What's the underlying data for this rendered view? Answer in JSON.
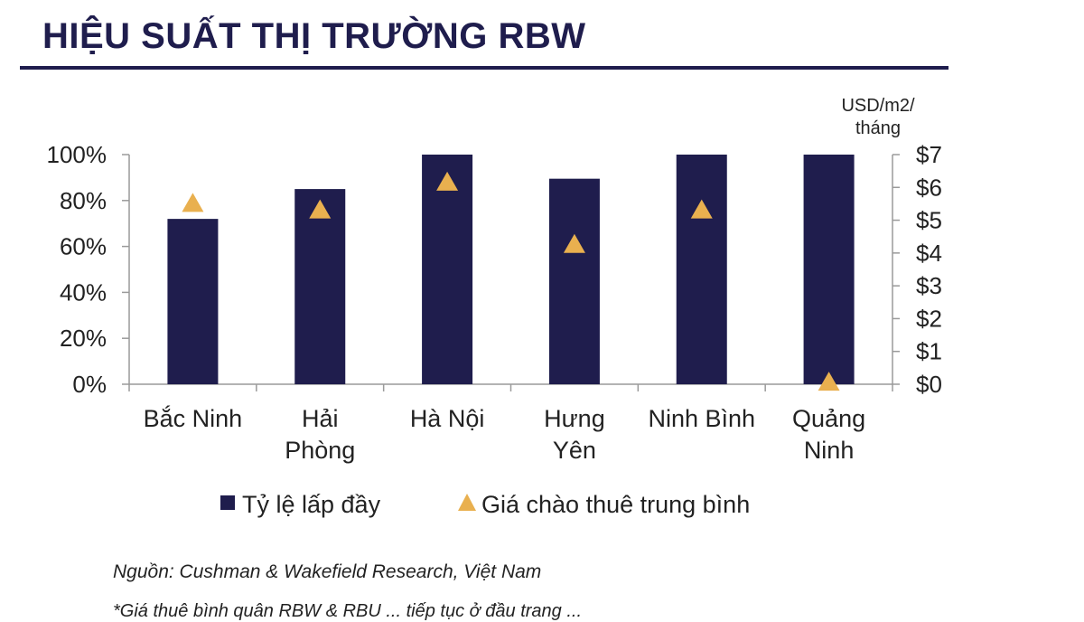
{
  "header": {
    "title": "HIỆU SUẤT THỊ TRƯỜNG RBW"
  },
  "colors": {
    "bar": "#1f1d4d",
    "marker": "#e9b04f",
    "title": "#1f1d4d"
  },
  "chart_data": {
    "type": "bar",
    "categories": [
      [
        "Bắc Ninh"
      ],
      [
        "Hải",
        "Phòng"
      ],
      [
        "Hà Nội"
      ],
      [
        "Hưng",
        "Yên"
      ],
      [
        "Ninh Bình"
      ],
      [
        "Quảng",
        "Ninh"
      ]
    ],
    "series": [
      {
        "name": "Tỷ lệ lấp đầy",
        "type": "bar",
        "axis": "left",
        "values": [
          72,
          85,
          100,
          89.5,
          100,
          100
        ]
      },
      {
        "name": "Giá chào thuê trung bình",
        "type": "marker-triangle",
        "axis": "right",
        "values": [
          5.5,
          5.3,
          6.15,
          4.25,
          5.3,
          0.05
        ]
      }
    ],
    "y_left": {
      "ylim": [
        0,
        100
      ],
      "ticks": [
        "0%",
        "20%",
        "40%",
        "60%",
        "80%",
        "100%"
      ]
    },
    "y_right": {
      "label": [
        "USD/m2/",
        "tháng"
      ],
      "ylim": [
        0,
        7
      ],
      "ticks": [
        "$0",
        "$1",
        "$2",
        "$3",
        "$4",
        "$5",
        "$6",
        "$7"
      ]
    },
    "grid": false,
    "legend_position": "bottom"
  },
  "footer": {
    "source": "Nguồn: Cushman & Wakefield Research, Việt Nam",
    "footnote": "*Giá thuê bình quân RBW & RBU ... tiếp tục ở đầu trang ..."
  }
}
